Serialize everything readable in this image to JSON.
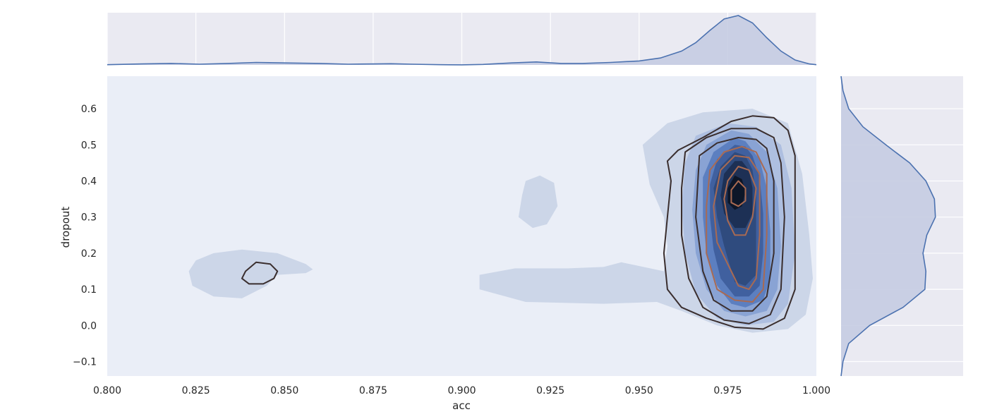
{
  "chart_data": {
    "type": "kde-joint",
    "xlabel": "acc",
    "ylabel": "dropout",
    "xlim": [
      0.8,
      1.0
    ],
    "ylim": [
      -0.14,
      0.69
    ],
    "x_ticks": [
      "0.800",
      "0.825",
      "0.850",
      "0.875",
      "0.900",
      "0.925",
      "0.950",
      "0.975",
      "1.000"
    ],
    "y_ticks": [
      "−0.1",
      "0.0",
      "0.1",
      "0.2",
      "0.3",
      "0.4",
      "0.5",
      "0.6"
    ],
    "grid": true,
    "legend": "none",
    "colors": {
      "figure_bg": "#ffffff",
      "axes_bg": "#eaeaf2",
      "joint_bg": "#eaeef7",
      "grid": "#ffffff",
      "marginal_line": "#4c72b0",
      "marginal_fill": "#c5cce2",
      "fill_levels": [
        "#ccd6e8",
        "#aebfe0",
        "#89a3d4",
        "#5c7fc0",
        "#40609f",
        "#2f4b7e",
        "#1d3055",
        "#0d1628"
      ],
      "contour_line_dark": "#3a2e2e",
      "contour_line_light": "#a96a52"
    },
    "marginal_x": {
      "x": [
        0.8,
        0.81,
        0.818,
        0.826,
        0.834,
        0.842,
        0.85,
        0.86,
        0.868,
        0.876,
        0.88,
        0.886,
        0.894,
        0.9,
        0.906,
        0.914,
        0.921,
        0.928,
        0.934,
        0.942,
        0.95,
        0.956,
        0.962,
        0.966,
        0.97,
        0.974,
        0.978,
        0.982,
        0.986,
        0.99,
        0.994,
        0.998,
        1.0
      ],
      "density": [
        0.005,
        0.02,
        0.03,
        0.015,
        0.03,
        0.05,
        0.04,
        0.03,
        0.015,
        0.02,
        0.025,
        0.015,
        0.005,
        0.002,
        0.01,
        0.04,
        0.06,
        0.03,
        0.03,
        0.05,
        0.08,
        0.14,
        0.28,
        0.45,
        0.7,
        0.93,
        1.0,
        0.85,
        0.55,
        0.28,
        0.1,
        0.02,
        0.005
      ]
    },
    "marginal_y": {
      "y": [
        -0.14,
        -0.1,
        -0.05,
        0.0,
        0.05,
        0.1,
        0.15,
        0.2,
        0.25,
        0.3,
        0.35,
        0.4,
        0.45,
        0.5,
        0.55,
        0.6,
        0.65,
        0.69
      ],
      "density": [
        0.0,
        0.02,
        0.08,
        0.3,
        0.65,
        0.88,
        0.89,
        0.86,
        0.9,
        0.99,
        0.98,
        0.89,
        0.72,
        0.47,
        0.23,
        0.08,
        0.02,
        0.0
      ]
    },
    "filled_regions": [
      {
        "level": 0,
        "path": [
          [
            0.957,
            0.15
          ],
          [
            0.945,
            0.175
          ],
          [
            0.94,
            0.162
          ],
          [
            0.93,
            0.158
          ],
          [
            0.915,
            0.158
          ],
          [
            0.905,
            0.14
          ],
          [
            0.905,
            0.1
          ],
          [
            0.918,
            0.065
          ],
          [
            0.94,
            0.06
          ],
          [
            0.955,
            0.065
          ],
          [
            0.962,
            0.04
          ],
          [
            0.972,
            0.0
          ],
          [
            0.982,
            -0.02
          ],
          [
            0.992,
            -0.01
          ],
          [
            0.997,
            0.03
          ],
          [
            0.999,
            0.13
          ],
          [
            0.998,
            0.25
          ],
          [
            0.996,
            0.42
          ],
          [
            0.992,
            0.56
          ],
          [
            0.982,
            0.6
          ],
          [
            0.968,
            0.59
          ],
          [
            0.958,
            0.56
          ],
          [
            0.951,
            0.5
          ],
          [
            0.953,
            0.39
          ],
          [
            0.957,
            0.3
          ],
          [
            0.958,
            0.22
          ]
        ]
      },
      {
        "level": 0,
        "path": [
          [
            0.83,
            0.2
          ],
          [
            0.838,
            0.21
          ],
          [
            0.848,
            0.2
          ],
          [
            0.856,
            0.17
          ],
          [
            0.858,
            0.155
          ],
          [
            0.856,
            0.145
          ],
          [
            0.848,
            0.14
          ],
          [
            0.845,
            0.11
          ],
          [
            0.838,
            0.075
          ],
          [
            0.83,
            0.08
          ],
          [
            0.824,
            0.11
          ],
          [
            0.823,
            0.15
          ],
          [
            0.825,
            0.18
          ]
        ]
      },
      {
        "level": 0,
        "path": [
          [
            0.918,
            0.4
          ],
          [
            0.922,
            0.415
          ],
          [
            0.926,
            0.395
          ],
          [
            0.927,
            0.33
          ],
          [
            0.924,
            0.28
          ],
          [
            0.92,
            0.27
          ],
          [
            0.916,
            0.3
          ],
          [
            0.917,
            0.36
          ]
        ]
      },
      {
        "level": 1,
        "path": [
          [
            0.975,
            0.56
          ],
          [
            0.966,
            0.525
          ],
          [
            0.963,
            0.45
          ],
          [
            0.962,
            0.33
          ],
          [
            0.963,
            0.2
          ],
          [
            0.966,
            0.09
          ],
          [
            0.972,
            0.02
          ],
          [
            0.98,
            0.0
          ],
          [
            0.988,
            0.01
          ],
          [
            0.992,
            0.06
          ],
          [
            0.994,
            0.2
          ],
          [
            0.993,
            0.38
          ],
          [
            0.99,
            0.5
          ],
          [
            0.983,
            0.55
          ]
        ]
      },
      {
        "level": 2,
        "path": [
          [
            0.976,
            0.54
          ],
          [
            0.969,
            0.5
          ],
          [
            0.966,
            0.43
          ],
          [
            0.965,
            0.32
          ],
          [
            0.966,
            0.2
          ],
          [
            0.969,
            0.1
          ],
          [
            0.974,
            0.04
          ],
          [
            0.98,
            0.025
          ],
          [
            0.986,
            0.04
          ],
          [
            0.989,
            0.1
          ],
          [
            0.99,
            0.22
          ],
          [
            0.989,
            0.38
          ],
          [
            0.986,
            0.48
          ],
          [
            0.981,
            0.53
          ]
        ]
      },
      {
        "level": 3,
        "path": [
          [
            0.977,
            0.52
          ],
          [
            0.971,
            0.48
          ],
          [
            0.968,
            0.41
          ],
          [
            0.968,
            0.3
          ],
          [
            0.969,
            0.2
          ],
          [
            0.972,
            0.11
          ],
          [
            0.976,
            0.06
          ],
          [
            0.98,
            0.05
          ],
          [
            0.985,
            0.07
          ],
          [
            0.987,
            0.13
          ],
          [
            0.987,
            0.26
          ],
          [
            0.986,
            0.38
          ],
          [
            0.984,
            0.46
          ],
          [
            0.98,
            0.51
          ]
        ]
      },
      {
        "level": 4,
        "path": [
          [
            0.977,
            0.5
          ],
          [
            0.972,
            0.46
          ],
          [
            0.97,
            0.39
          ],
          [
            0.97,
            0.3
          ],
          [
            0.971,
            0.21
          ],
          [
            0.973,
            0.13
          ],
          [
            0.977,
            0.08
          ],
          [
            0.981,
            0.08
          ],
          [
            0.984,
            0.11
          ],
          [
            0.985,
            0.2
          ],
          [
            0.985,
            0.31
          ],
          [
            0.984,
            0.41
          ],
          [
            0.982,
            0.47
          ],
          [
            0.98,
            0.495
          ]
        ]
      },
      {
        "level": 5,
        "path": [
          [
            0.977,
            0.48
          ],
          [
            0.973,
            0.44
          ],
          [
            0.971,
            0.38
          ],
          [
            0.972,
            0.3
          ],
          [
            0.974,
            0.22
          ],
          [
            0.977,
            0.12
          ],
          [
            0.98,
            0.11
          ],
          [
            0.983,
            0.14
          ],
          [
            0.983,
            0.25
          ],
          [
            0.983,
            0.36
          ],
          [
            0.982,
            0.43
          ],
          [
            0.98,
            0.47
          ]
        ]
      },
      {
        "level": 6,
        "path": [
          [
            0.977,
            0.455
          ],
          [
            0.974,
            0.42
          ],
          [
            0.973,
            0.36
          ],
          [
            0.974,
            0.31
          ],
          [
            0.977,
            0.27
          ],
          [
            0.98,
            0.27
          ],
          [
            0.982,
            0.31
          ],
          [
            0.982,
            0.38
          ],
          [
            0.981,
            0.43
          ],
          [
            0.979,
            0.455
          ]
        ]
      },
      {
        "level": 7,
        "path": [
          [
            0.977,
            0.415
          ],
          [
            0.975,
            0.38
          ],
          [
            0.975,
            0.34
          ],
          [
            0.977,
            0.32
          ],
          [
            0.979,
            0.33
          ],
          [
            0.98,
            0.37
          ],
          [
            0.979,
            0.405
          ]
        ]
      }
    ],
    "contour_lines": [
      {
        "color": "dark",
        "path": [
          [
            0.958,
            0.455
          ],
          [
            0.961,
            0.485
          ],
          [
            0.968,
            0.52
          ],
          [
            0.976,
            0.565
          ],
          [
            0.982,
            0.58
          ],
          [
            0.988,
            0.575
          ],
          [
            0.992,
            0.54
          ],
          [
            0.994,
            0.47
          ],
          [
            0.994,
            0.3
          ],
          [
            0.994,
            0.1
          ],
          [
            0.991,
            0.02
          ],
          [
            0.985,
            -0.01
          ],
          [
            0.977,
            -0.005
          ],
          [
            0.969,
            0.02
          ],
          [
            0.962,
            0.05
          ],
          [
            0.958,
            0.1
          ],
          [
            0.957,
            0.2
          ],
          [
            0.958,
            0.3
          ],
          [
            0.959,
            0.4
          ],
          [
            0.958,
            0.455
          ]
        ]
      },
      {
        "color": "dark",
        "path": [
          [
            0.963,
            0.48
          ],
          [
            0.969,
            0.52
          ],
          [
            0.976,
            0.545
          ],
          [
            0.983,
            0.545
          ],
          [
            0.988,
            0.52
          ],
          [
            0.99,
            0.45
          ],
          [
            0.991,
            0.3
          ],
          [
            0.99,
            0.1
          ],
          [
            0.987,
            0.03
          ],
          [
            0.981,
            0.005
          ],
          [
            0.974,
            0.015
          ],
          [
            0.968,
            0.05
          ],
          [
            0.964,
            0.13
          ],
          [
            0.962,
            0.25
          ],
          [
            0.962,
            0.38
          ],
          [
            0.963,
            0.48
          ]
        ]
      },
      {
        "color": "dark",
        "path": [
          [
            0.967,
            0.47
          ],
          [
            0.972,
            0.505
          ],
          [
            0.978,
            0.52
          ],
          [
            0.983,
            0.515
          ],
          [
            0.986,
            0.49
          ],
          [
            0.988,
            0.4
          ],
          [
            0.988,
            0.2
          ],
          [
            0.986,
            0.08
          ],
          [
            0.982,
            0.04
          ],
          [
            0.976,
            0.04
          ],
          [
            0.971,
            0.07
          ],
          [
            0.968,
            0.15
          ],
          [
            0.966,
            0.3
          ],
          [
            0.967,
            0.47
          ]
        ]
      },
      {
        "color": "light",
        "path": [
          [
            0.97,
            0.43
          ],
          [
            0.974,
            0.48
          ],
          [
            0.979,
            0.495
          ],
          [
            0.983,
            0.48
          ],
          [
            0.986,
            0.42
          ],
          [
            0.986,
            0.25
          ],
          [
            0.985,
            0.1
          ],
          [
            0.982,
            0.065
          ],
          [
            0.977,
            0.07
          ],
          [
            0.972,
            0.1
          ],
          [
            0.969,
            0.2
          ],
          [
            0.969,
            0.33
          ],
          [
            0.97,
            0.43
          ]
        ]
      },
      {
        "color": "light",
        "path": [
          [
            0.973,
            0.43
          ],
          [
            0.977,
            0.47
          ],
          [
            0.981,
            0.465
          ],
          [
            0.984,
            0.42
          ],
          [
            0.984,
            0.25
          ],
          [
            0.983,
            0.13
          ],
          [
            0.981,
            0.1
          ],
          [
            0.978,
            0.11
          ],
          [
            0.976,
            0.15
          ],
          [
            0.972,
            0.23
          ],
          [
            0.971,
            0.33
          ],
          [
            0.973,
            0.43
          ]
        ]
      },
      {
        "color": "light",
        "path": [
          [
            0.975,
            0.4
          ],
          [
            0.978,
            0.44
          ],
          [
            0.981,
            0.43
          ],
          [
            0.983,
            0.38
          ],
          [
            0.982,
            0.3
          ],
          [
            0.98,
            0.25
          ],
          [
            0.977,
            0.25
          ],
          [
            0.975,
            0.29
          ],
          [
            0.974,
            0.35
          ],
          [
            0.975,
            0.4
          ]
        ]
      },
      {
        "color": "light",
        "path": [
          [
            0.976,
            0.375
          ],
          [
            0.978,
            0.4
          ],
          [
            0.98,
            0.38
          ],
          [
            0.98,
            0.345
          ],
          [
            0.978,
            0.33
          ],
          [
            0.976,
            0.34
          ],
          [
            0.976,
            0.375
          ]
        ]
      },
      {
        "color": "dark",
        "path": [
          [
            0.839,
            0.15
          ],
          [
            0.842,
            0.175
          ],
          [
            0.846,
            0.17
          ],
          [
            0.848,
            0.15
          ],
          [
            0.847,
            0.13
          ],
          [
            0.844,
            0.115
          ],
          [
            0.84,
            0.115
          ],
          [
            0.838,
            0.13
          ],
          [
            0.839,
            0.15
          ]
        ]
      }
    ]
  }
}
